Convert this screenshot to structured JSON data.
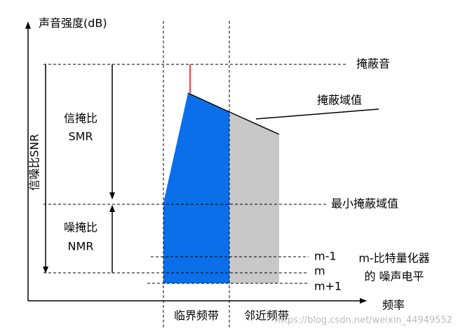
{
  "axis": {
    "y_label": "声音强度(dB)",
    "x_label": "频率"
  },
  "levels": {
    "masker": "掩蔽音",
    "threshold": "掩蔽域值",
    "min_threshold": "最小掩蔽域值"
  },
  "ratios": {
    "smr_cn": "信掩比",
    "smr": "SMR",
    "nmr_cn": "噪掩比",
    "nmr": "NMR",
    "snr": "信噪比SNR"
  },
  "quantizer": {
    "levels": [
      "m-1",
      "m",
      "m+1"
    ],
    "caption_1": "m-比特量化器",
    "caption_2": "的 噪声电平"
  },
  "bands": {
    "critical": "临界频带",
    "adjacent": "邻近频带"
  },
  "watermark": "https://blog.csdn.net/weixin_44949552"
}
